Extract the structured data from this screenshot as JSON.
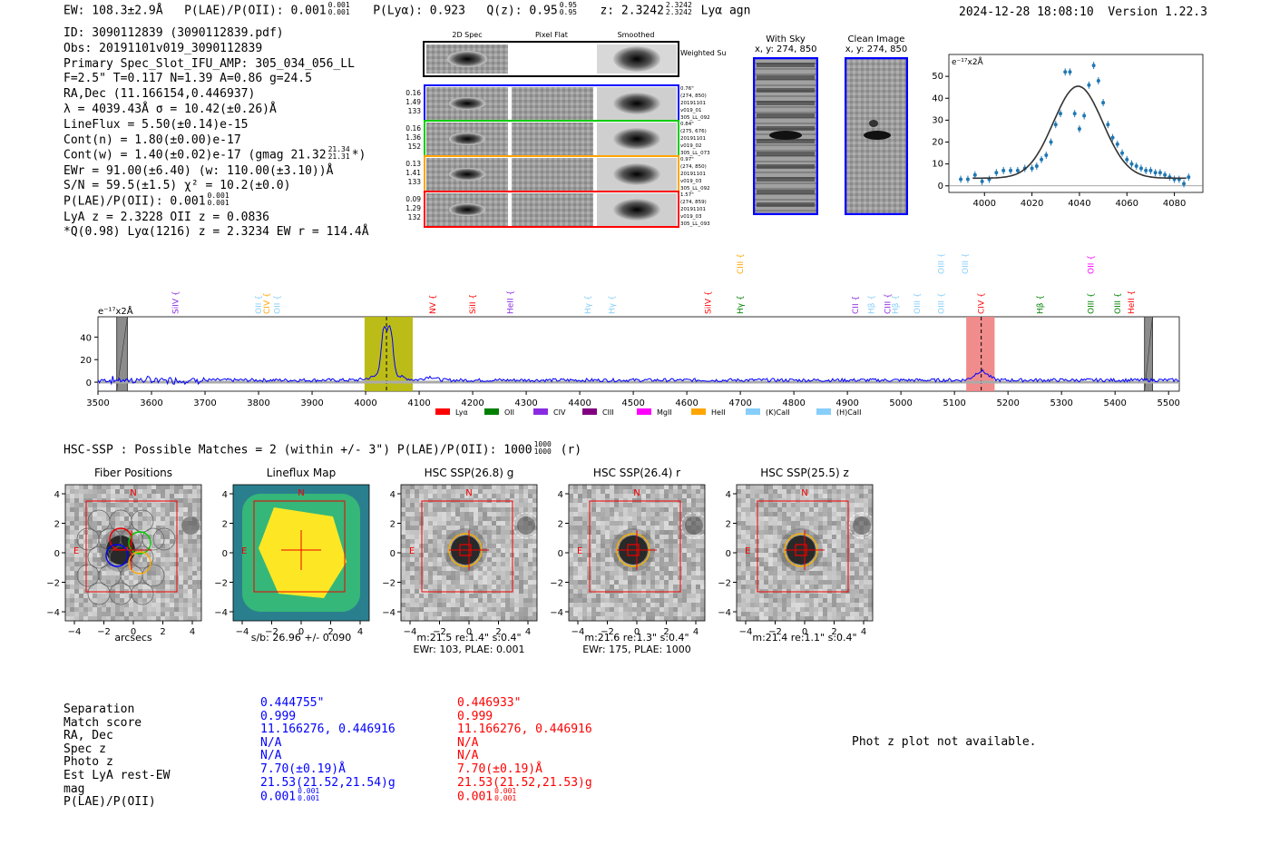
{
  "header": {
    "ew": "EW: 108.3±2.9Å",
    "plae_label": "P(LAE)/P(OII): 0.001",
    "plae_hi": "0.001",
    "plae_lo": "0.001",
    "plya": "P(Lyα): 0.923",
    "qz_label": "Q(z): 0.95",
    "qz_hi": "0.95",
    "qz_lo": "0.95",
    "z_label": "z: 2.3242",
    "z_hi": "2.3242",
    "z_lo": "2.3242",
    "tail": "Lyα  agn",
    "datetime": "2024-12-28 18:08:10",
    "version": "Version 1.22.3"
  },
  "info": {
    "id": "ID: 3090112839 (3090112839.pdf)",
    "obs": "Obs: 20191101v019_3090112839",
    "primary": "Primary Spec_Slot_IFU_AMP: 305_034_056_LL",
    "fparams": "F=2.5\"  T=0.117  N=1.39  A=0.86  g=24.5",
    "radec": "RA,Dec (11.166154,0.446937)",
    "lambda": "λ = 4039.43Å  σ = 10.42(±0.26)Å",
    "lineflux": "LineFlux = 5.50(±0.14)e-15",
    "contn": "Cont(n) = 1.80(±0.00)e-17",
    "contw": "Cont(w) = 1.40(±0.02)e-17 (gmag 21.32",
    "contw_hi": "21.34",
    "contw_lo": "21.31",
    "contw_tail": "*)",
    "ewr": "EWr = 91.00(±6.40) (w: 110.00(±3.10))Å",
    "sn": "S/N = 59.5(±1.5)  χ² = 10.2(±0.0)",
    "plae": "P(LAE)/P(OII): 0.001",
    "plae_hi": "0.001",
    "plae_lo": "0.001",
    "lyaz": "LyA z = 2.3228  OII z = 0.0836",
    "q": "*Q(0.98) Lyα(1216) z = 2.3234  EW r = 114.4Å"
  },
  "cutouts": {
    "col_headers": [
      "2D Spec",
      "Pixel Flat",
      "Smoothed"
    ],
    "weighted": "Weighted Sum",
    "rows": [
      {
        "left": [
          "0.16",
          "1.49",
          "133"
        ],
        "right": [
          "0.76\"",
          "(274, 850)",
          "20191101",
          "v019_01",
          "305_LL_092"
        ],
        "color": "#0000ff"
      },
      {
        "left": [
          "0.16",
          "1.36",
          "152"
        ],
        "right": [
          "0.84\"",
          "(275, 676)",
          "20191101",
          "v019_02",
          "305_LL_073"
        ],
        "color": "#00cc00"
      },
      {
        "left": [
          "0.13",
          "1.41",
          "133"
        ],
        "right": [
          "0.97\"",
          "(274, 850)",
          "20191101",
          "v019_03",
          "305_LL_092"
        ],
        "color": "#ffa500"
      },
      {
        "left": [
          "0.09",
          "1.29",
          "132"
        ],
        "right": [
          "1.57\"",
          "(274, 859)",
          "20191101",
          "v019_03",
          "305_LL_093"
        ],
        "color": "#ff0000"
      }
    ],
    "with_sky": "With Sky",
    "with_sky_xy": "x, y: 274, 850",
    "clean": "Clean Image",
    "clean_xy": "x, y: 274, 850"
  },
  "chart_data": [
    {
      "type": "scatter",
      "title": "",
      "ylabel": "e⁻¹⁷x2Å",
      "xlim": [
        3985,
        4092
      ],
      "ylim": [
        -3,
        60
      ],
      "xticks": [
        4000,
        4020,
        4040,
        4060,
        4080
      ],
      "yticks": [
        0,
        10,
        20,
        30,
        40,
        50
      ],
      "points": {
        "x": [
          3990,
          3993,
          3996,
          3999,
          4002,
          4005,
          4008,
          4011,
          4014,
          4017,
          4020,
          4022,
          4024,
          4026,
          4028,
          4030,
          4032,
          4034,
          4036,
          4038,
          4040,
          4042,
          4044,
          4046,
          4048,
          4050,
          4052,
          4054,
          4056,
          4058,
          4060,
          4062,
          4064,
          4066,
          4068,
          4070,
          4072,
          4074,
          4076,
          4078,
          4080,
          4082,
          4084,
          4086
        ],
        "y": [
          3,
          3,
          5,
          2,
          3,
          6,
          7,
          7,
          7,
          8,
          8,
          9,
          12,
          14,
          20,
          28,
          33,
          52,
          52,
          33,
          26,
          32,
          46,
          55,
          48,
          38,
          28,
          22,
          19,
          15,
          12,
          10,
          9,
          8,
          7,
          7,
          6,
          6,
          5,
          4,
          3,
          3,
          1,
          4
        ]
      },
      "fit": {
        "center": 4039.43,
        "sigma": 10.42,
        "amplitude": 42,
        "baseline": 3.5
      }
    },
    {
      "type": "line",
      "title": "",
      "ylabel": "e⁻¹⁷x2Å",
      "xlim": [
        3500,
        5520
      ],
      "ylim": [
        -8,
        58
      ],
      "xticks": [
        3500,
        3600,
        3700,
        3800,
        3900,
        4000,
        4100,
        4200,
        4300,
        4400,
        4500,
        4600,
        4700,
        4800,
        4900,
        5000,
        5100,
        5200,
        5300,
        5400,
        5500
      ],
      "yticks": [
        0,
        20,
        40
      ],
      "highlights": [
        {
          "x0": 3998,
          "x1": 4088,
          "color": "#b5b500"
        },
        {
          "x0": 5122,
          "x1": 5175,
          "color": "#f08080"
        }
      ],
      "hatched": [
        [
          3535,
          3555
        ],
        [
          5455,
          5470
        ]
      ],
      "dashed_lines": [
        4039,
        5150
      ],
      "line_labels": [
        {
          "x": 3645,
          "text": "SiIV",
          "color": "#8a2be2",
          "row": 1
        },
        {
          "x": 3800,
          "text": "OII",
          "color": "#87cefa",
          "row": 1
        },
        {
          "x": 3815,
          "text": "CIV",
          "color": "#ffa500",
          "row": 1
        },
        {
          "x": 3835,
          "text": "OII",
          "color": "#87cefa",
          "row": 1
        },
        {
          "x": 4125,
          "text": "NV",
          "color": "#ff0000",
          "row": 1
        },
        {
          "x": 4200,
          "text": "SiII",
          "color": "#ff0000",
          "row": 1
        },
        {
          "x": 4270,
          "text": "HeII",
          "color": "#8a2be2",
          "row": 1
        },
        {
          "x": 4415,
          "text": "Hγ",
          "color": "#87cefa",
          "row": 1
        },
        {
          "x": 4460,
          "text": "Hγ",
          "color": "#87cefa",
          "row": 1
        },
        {
          "x": 4640,
          "text": "SiIV",
          "color": "#ff0000",
          "row": 1
        },
        {
          "x": 4700,
          "text": "Hγ",
          "color": "#008000",
          "row": 1
        },
        {
          "x": 4700,
          "text": "CIII",
          "color": "#ffa500",
          "row": 0
        },
        {
          "x": 4915,
          "text": "CII",
          "color": "#8a2be2",
          "row": 1
        },
        {
          "x": 4945,
          "text": "Hβ",
          "color": "#87cefa",
          "row": 1
        },
        {
          "x": 4975,
          "text": "CIII",
          "color": "#8a2be2",
          "row": 1
        },
        {
          "x": 4990,
          "text": "Hβ",
          "color": "#87cefa",
          "row": 1
        },
        {
          "x": 5030,
          "text": "OIII",
          "color": "#87cefa",
          "row": 1
        },
        {
          "x": 5075,
          "text": "OIII",
          "color": "#87cefa",
          "row": 1
        },
        {
          "x": 5075,
          "text": "OIII",
          "color": "#87cefa",
          "row": 0
        },
        {
          "x": 5120,
          "text": "OIII",
          "color": "#87cefa",
          "row": 0
        },
        {
          "x": 5150,
          "text": "CIV",
          "color": "#ff0000",
          "row": 1
        },
        {
          "x": 5260,
          "text": "Hβ",
          "color": "#008000",
          "row": 1
        },
        {
          "x": 5355,
          "text": "OIII",
          "color": "#008000",
          "row": 1
        },
        {
          "x": 5355,
          "text": "OII",
          "color": "#ff00ff",
          "row": 0
        },
        {
          "x": 5405,
          "text": "OIII",
          "color": "#008000",
          "row": 1
        },
        {
          "x": 5430,
          "text": "HeII",
          "color": "#ff0000",
          "row": 1
        }
      ],
      "legend": [
        {
          "label": "Lyα",
          "color": "#ff0000"
        },
        {
          "label": "OII",
          "color": "#008000"
        },
        {
          "label": "CIV",
          "color": "#8a2be2"
        },
        {
          "label": "CIII",
          "color": "#800080"
        },
        {
          "label": "MgII",
          "color": "#ff00ff"
        },
        {
          "label": "HeII",
          "color": "#ffa500"
        },
        {
          "label": "(K)CaII",
          "color": "#87cefa"
        },
        {
          "label": "(H)CaII",
          "color": "#87cefa"
        }
      ]
    }
  ],
  "hsc": {
    "line": "HSC-SSP : Possible Matches = 2 (within +/- 3\")  P(LAE)/P(OII): 1000",
    "hi": "1000",
    "lo": "1000",
    "tail": "(r)"
  },
  "panels": [
    {
      "title": "Fiber Positions",
      "caption1": "arcsecs",
      "caption2": ""
    },
    {
      "title": "Lineflux Map",
      "caption1": "s/b: 26.96 +/- 0.090",
      "caption2": ""
    },
    {
      "title": "HSC SSP(26.8) g",
      "caption1": "m:21.5  re:1.4\"  s:0.4\"",
      "caption2": "EWr: 103, PLAE: 0.001"
    },
    {
      "title": "HSC SSP(26.4) r",
      "caption1": "m:21.6  re:1.3\"  s:0.4\"",
      "caption2": "EWr: 175, PLAE: 1000"
    },
    {
      "title": "HSC SSP(25.5) z",
      "caption1": "m:21.4  re:1.1\"  s:0.4\"",
      "caption2": ""
    }
  ],
  "panel_axes": {
    "xticks": [
      "−4",
      "−2",
      "0",
      "2",
      "4"
    ],
    "yticks": [
      "4",
      "2",
      "0",
      "−2",
      "−4"
    ],
    "north": "N",
    "east": "E"
  },
  "matches": {
    "labels": [
      "Separation",
      "Match score",
      "RA, Dec",
      "Spec z",
      "Photo z",
      "Est LyA rest-EW",
      "mag",
      "P(LAE)/P(OII)"
    ],
    "col1": [
      "0.444755\"",
      "0.999",
      "11.166276, 0.446916",
      "N/A",
      "N/A",
      "7.70(±0.19)Å",
      "21.53(21.52,21.54)g",
      "0.001"
    ],
    "col1_hi": "0.001",
    "col1_lo": "0.001",
    "col2": [
      "0.446933\"",
      "0.999",
      "11.166276, 0.446916",
      "N/A",
      "N/A",
      "7.70(±0.19)Å",
      "21.53(21.52,21.53)g",
      "0.001"
    ],
    "col2_hi": "0.001",
    "col2_lo": "0.001",
    "photz_note": "Phot z plot not available."
  }
}
